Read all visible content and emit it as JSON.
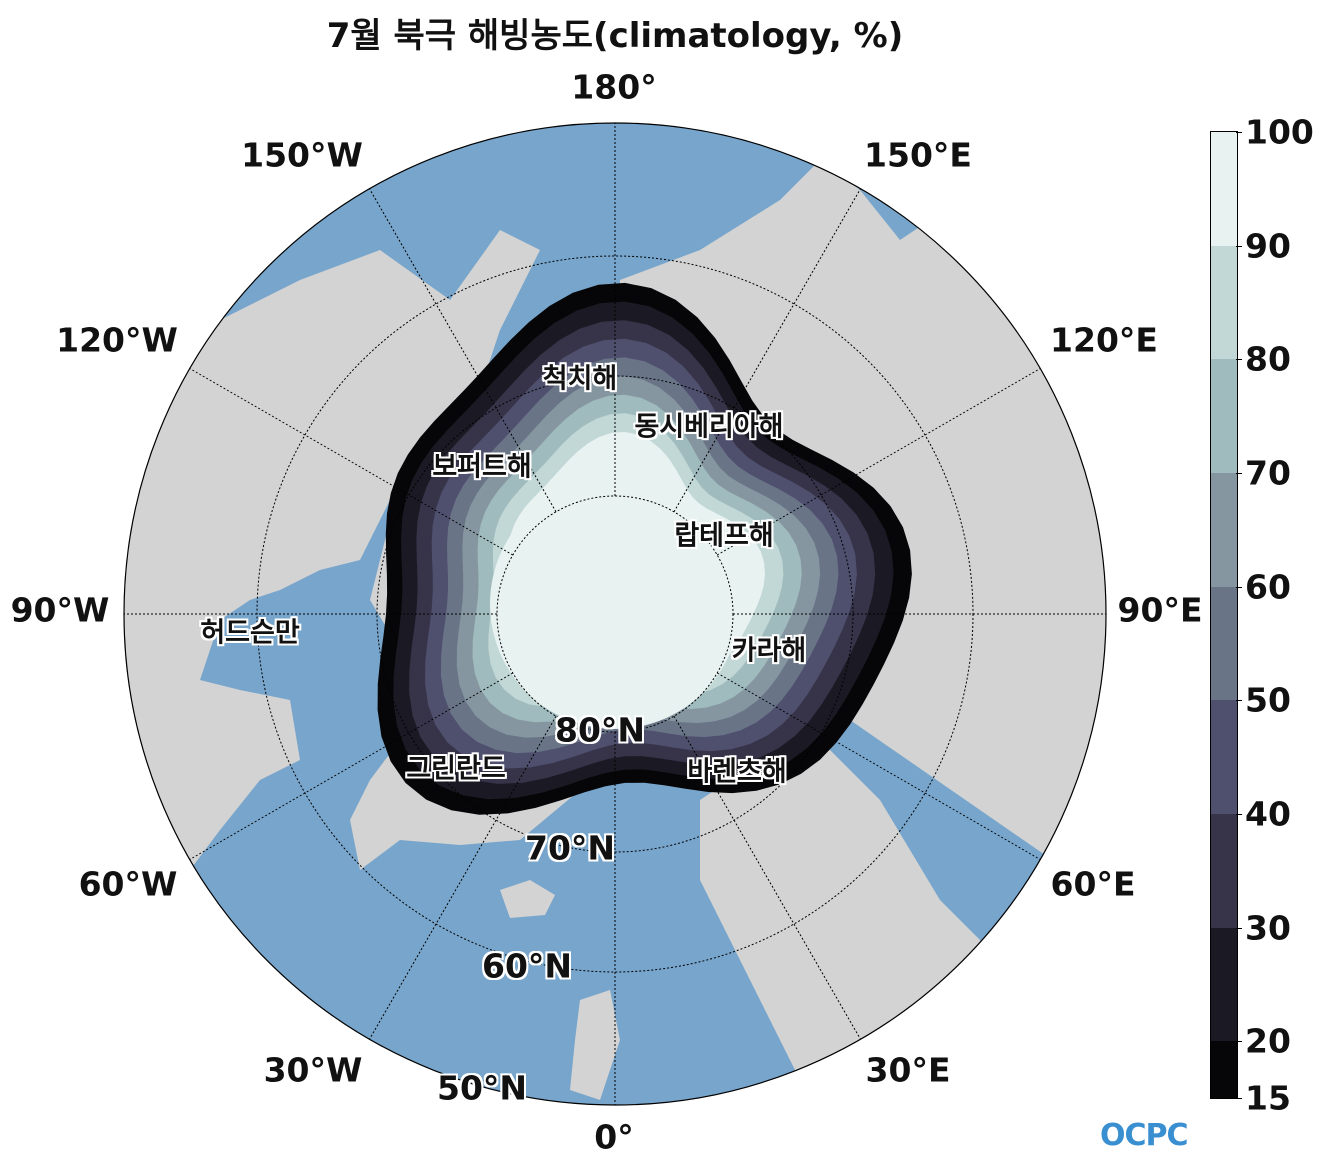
{
  "title": "7월 북극 해빙농도(climatology, %)",
  "map": {
    "projection": "north polar stereographic",
    "colors": {
      "ocean": "#77a5cb",
      "land": "#d3d3d3",
      "grid": "#000000"
    },
    "longitude_labels": [
      {
        "lon": 180,
        "text": "180°"
      },
      {
        "lon": 150,
        "text": "150°E"
      },
      {
        "lon": 120,
        "text": "120°E"
      },
      {
        "lon": 90,
        "text": "90°E"
      },
      {
        "lon": 60,
        "text": "60°E"
      },
      {
        "lon": 30,
        "text": "30°E"
      },
      {
        "lon": 0,
        "text": "0°"
      },
      {
        "lon": -30,
        "text": "30°W"
      },
      {
        "lon": -60,
        "text": "60°W"
      },
      {
        "lon": -90,
        "text": "90°W"
      },
      {
        "lon": -120,
        "text": "120°W"
      },
      {
        "lon": -150,
        "text": "150°W"
      }
    ],
    "latitude_labels": [
      {
        "lat": 80,
        "text": "80°N"
      },
      {
        "lat": 70,
        "text": "70°N"
      },
      {
        "lat": 60,
        "text": "60°N"
      },
      {
        "lat": 50,
        "text": "50°N"
      }
    ],
    "regions": [
      {
        "name": "척치해"
      },
      {
        "name": "동시베리아해"
      },
      {
        "name": "보퍼트해"
      },
      {
        "name": "랍테프해"
      },
      {
        "name": "허드슨만"
      },
      {
        "name": "카라해"
      },
      {
        "name": "그린란드"
      },
      {
        "name": "바렌츠해"
      }
    ]
  },
  "colorbar": {
    "ticks": [
      "100",
      "90",
      "80",
      "70",
      "60",
      "50",
      "40",
      "30",
      "20",
      "15"
    ],
    "levels": [
      15,
      20,
      30,
      40,
      50,
      60,
      70,
      80,
      90,
      100
    ],
    "colors": [
      "#060608",
      "#1b1a24",
      "#37344a",
      "#4f4f6e",
      "#697487",
      "#8596a0",
      "#9fbbbd",
      "#c2d8d6",
      "#e8f2f1"
    ]
  },
  "logo": "OCPC"
}
